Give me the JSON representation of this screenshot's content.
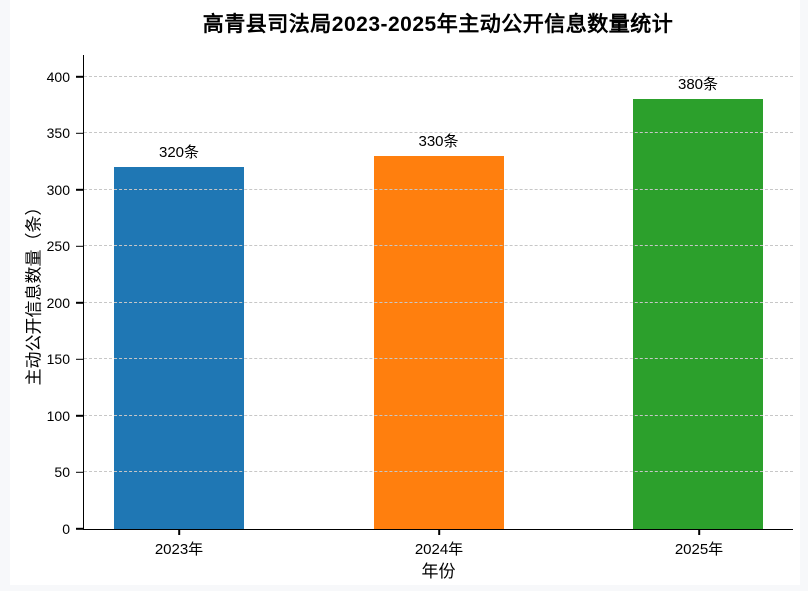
{
  "page": {
    "background_color": "#f7f8fa",
    "figure_background_color": "#ffffff"
  },
  "chart_data": {
    "type": "bar",
    "title": "高青县司法局2023-2025年主动公开信息数量统计",
    "xlabel": "年份",
    "ylabel": "主动公开信息数量（条）",
    "categories": [
      "2023年",
      "2024年",
      "2025年"
    ],
    "values": [
      320,
      330,
      380
    ],
    "value_labels": [
      "320条",
      "330条",
      "380条"
    ],
    "series": [
      {
        "name": "主动公开信息数量",
        "values": [
          320,
          330,
          380
        ]
      }
    ],
    "bar_colors": [
      "#1f77b4",
      "#ff7f0e",
      "#2ca02c"
    ],
    "ylim": [
      0,
      420
    ],
    "yticks": [
      0,
      50,
      100,
      150,
      200,
      250,
      300,
      350,
      400
    ],
    "grid": {
      "axis": "y",
      "style": "dashed",
      "color": "#c7c7c7",
      "drawn_above_bars": true
    },
    "legend": "none",
    "axis_color": "#000000"
  }
}
